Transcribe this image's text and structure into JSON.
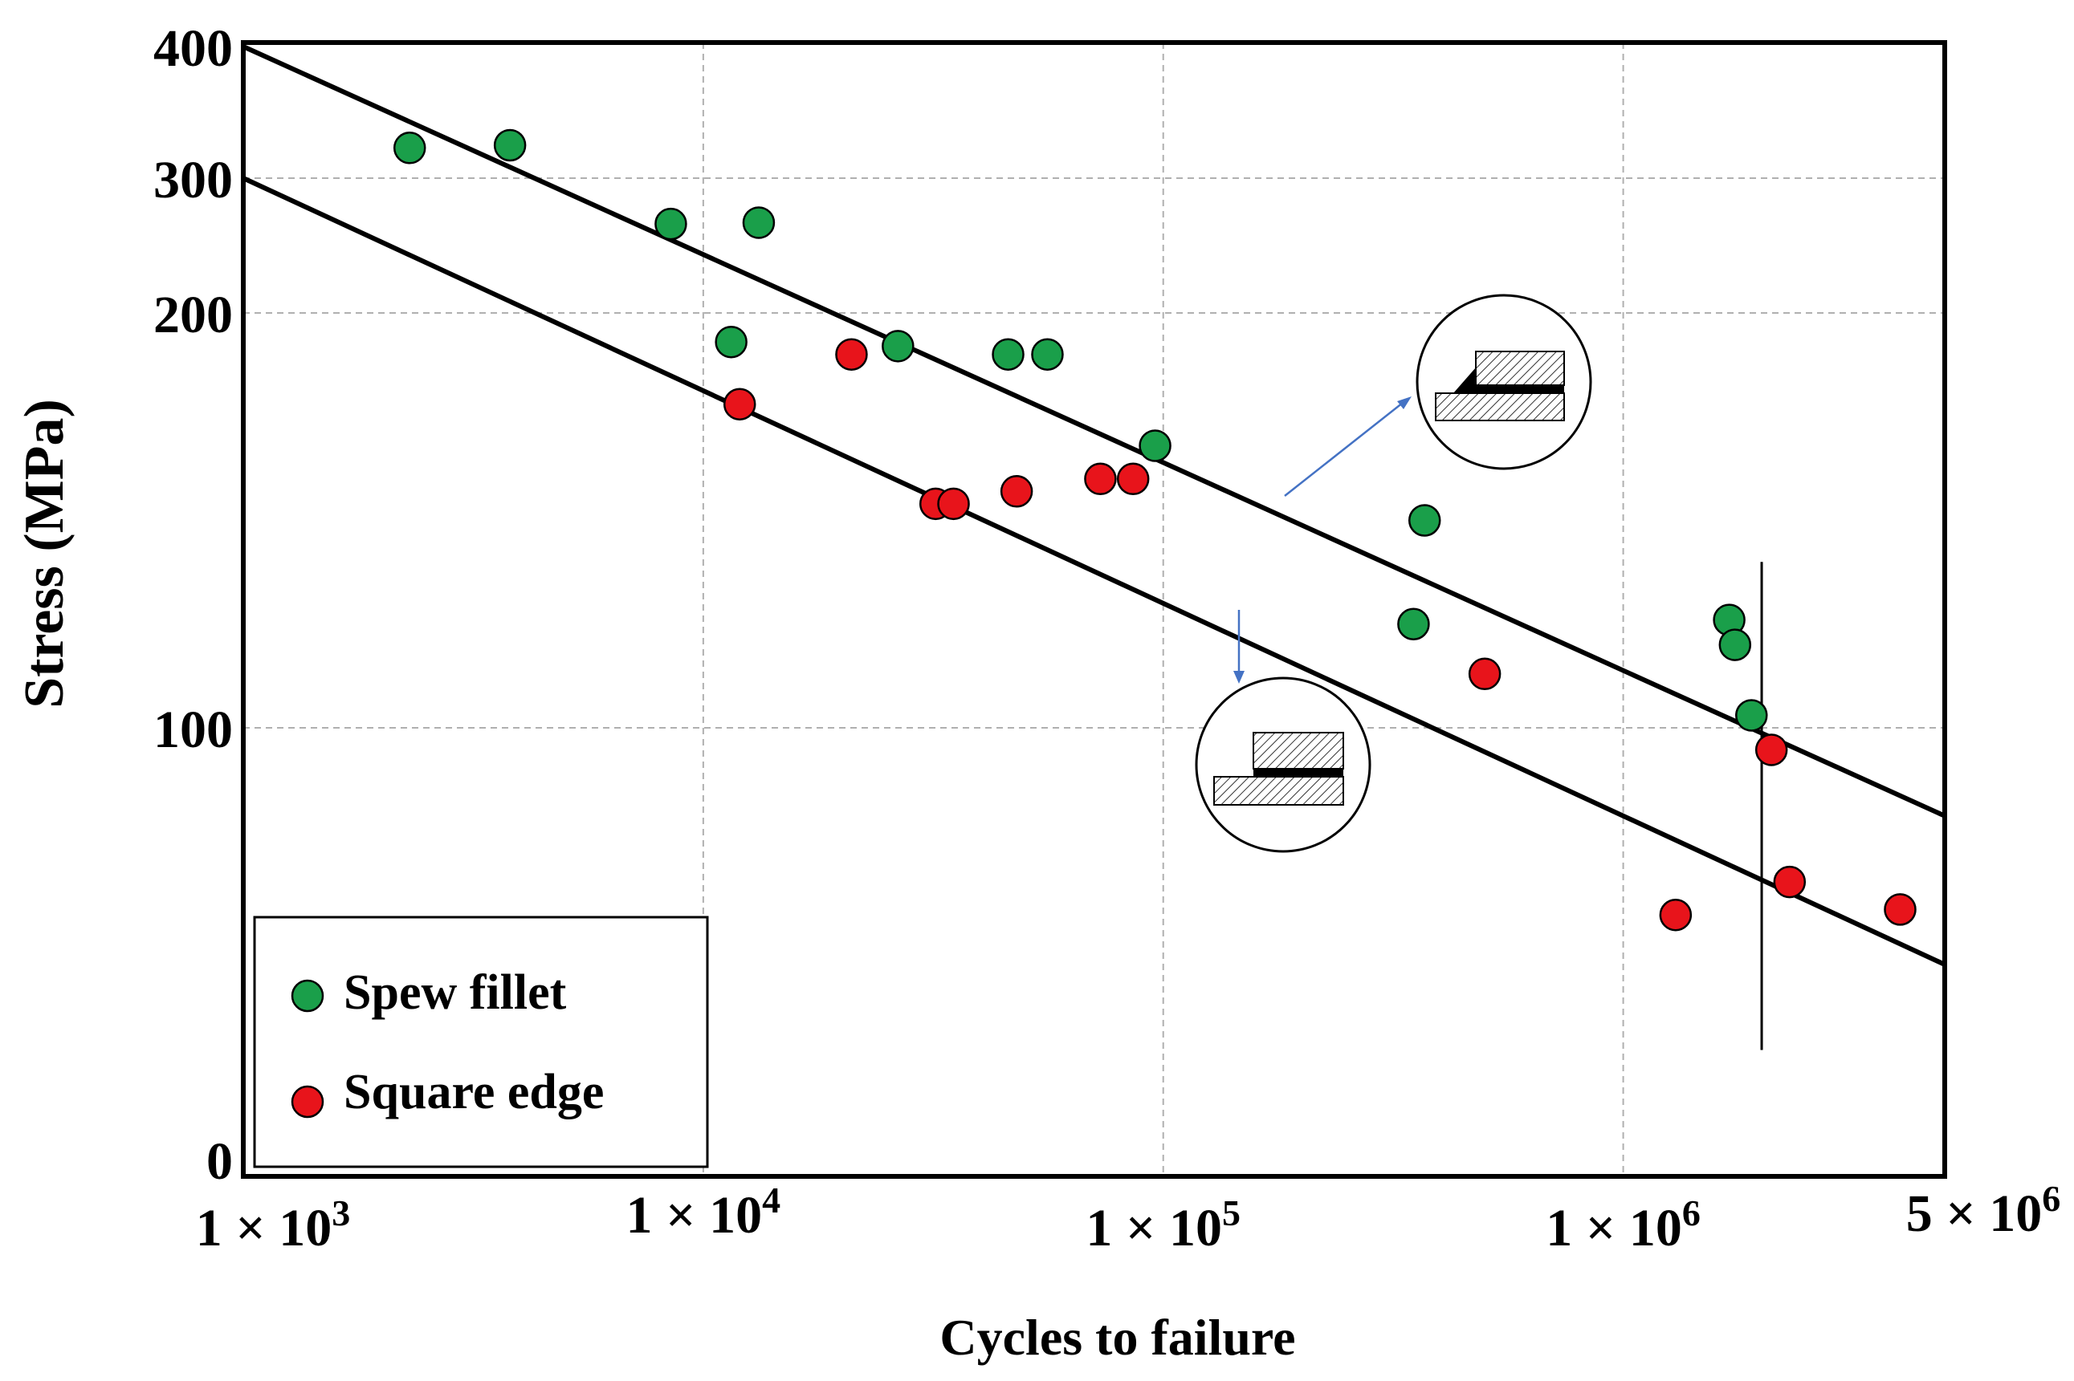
{
  "chart_data": {
    "type": "scatter",
    "title": "",
    "xlabel": "Cycles to failure",
    "ylabel": "Stress (MPa)",
    "xscale": "log",
    "xlim": [
      1000,
      5000000
    ],
    "x_ticks": [
      {
        "value": 1000,
        "mant": "1 × 10",
        "exp": "3"
      },
      {
        "value": 10000,
        "mant": "1 × 10",
        "exp": "4"
      },
      {
        "value": 100000,
        "mant": "1 × 10",
        "exp": "5"
      },
      {
        "value": 1000000,
        "mant": "1 × 10",
        "exp": "6"
      },
      {
        "value": 5000000,
        "mant": "5 × 10",
        "exp": "6"
      }
    ],
    "y_ticks": [
      {
        "value": 400,
        "label": "400"
      },
      {
        "value": 300,
        "label": "300"
      },
      {
        "value": 200,
        "label": "200"
      },
      {
        "value": 100,
        "label": "100"
      },
      {
        "value": 0,
        "label": "0"
      }
    ],
    "grid": true,
    "legend_position": "bottom-left",
    "series": [
      {
        "name": "Spew fillet",
        "color": "#1a9f4a",
        "points": [
          {
            "x": 2300,
            "y": 323
          },
          {
            "x": 3800,
            "y": 325
          },
          {
            "x": 8500,
            "y": 266
          },
          {
            "x": 11500,
            "y": 193
          },
          {
            "x": 13200,
            "y": 267
          },
          {
            "x": 26500,
            "y": 192
          },
          {
            "x": 46000,
            "y": 190
          },
          {
            "x": 56000,
            "y": 190
          },
          {
            "x": 96000,
            "y": 168
          },
          {
            "x": 370000,
            "y": 150
          },
          {
            "x": 350000,
            "y": 125
          },
          {
            "x": 1700000,
            "y": 126
          },
          {
            "x": 1750000,
            "y": 120
          },
          {
            "x": 1900000,
            "y": 103
          }
        ]
      },
      {
        "name": "Square edge",
        "color": "#e8141b",
        "points": [
          {
            "x": 12000,
            "y": 178
          },
          {
            "x": 21000,
            "y": 190
          },
          {
            "x": 32000,
            "y": 154
          },
          {
            "x": 35000,
            "y": 154
          },
          {
            "x": 48000,
            "y": 157
          },
          {
            "x": 73000,
            "y": 160
          },
          {
            "x": 86000,
            "y": 160
          },
          {
            "x": 500000,
            "y": 113
          },
          {
            "x": 1300000,
            "y": 66
          },
          {
            "x": 2100000,
            "y": 96
          },
          {
            "x": 2300000,
            "y": 72
          },
          {
            "x": 4000000,
            "y": 67
          }
        ]
      }
    ],
    "fit_lines": [
      {
        "name": "upper-fit",
        "x": [
          1000,
          5000000
        ],
        "y": [
          400,
          84
        ]
      },
      {
        "name": "lower-fit",
        "x": [
          1000,
          5000000
        ],
        "y": [
          300,
          57
        ]
      }
    ],
    "vertical_marker": {
      "x": 2000000,
      "y": [
        35,
        140
      ]
    }
  }
}
